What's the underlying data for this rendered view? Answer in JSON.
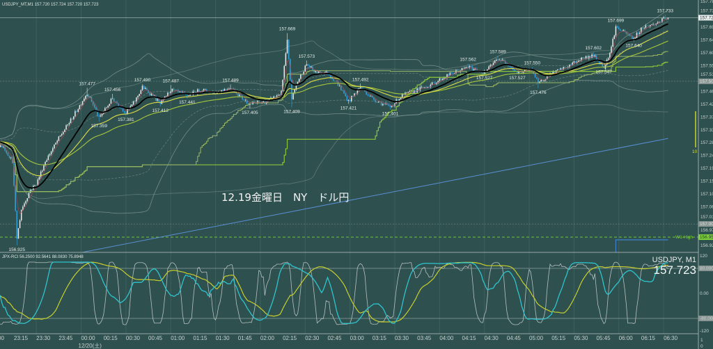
{
  "header": {
    "symbol_info": "USDJPY_MT,M1  157.720 157.724 157.720 157.723"
  },
  "annotation": "12.19金曜日　NY　ドル円",
  "oscillator": {
    "header": "JPX-RCI 56.2500 92.5641 88.0830 75.8948",
    "symbol_label": "USDJPY, M1",
    "price_label": "157.723",
    "axis": [
      {
        "text": "120",
        "value": 120,
        "boxed": false
      },
      {
        "text": "80.0000",
        "value": 80,
        "boxed": true
      },
      {
        "text": "0.00",
        "value": 0,
        "boxed": false
      },
      {
        "text": "-80.0000",
        "value": -80,
        "boxed": true
      },
      {
        "text": "-120",
        "value": -120,
        "boxed": false
      }
    ],
    "footer_ticks": [
      "1",
      "0"
    ]
  },
  "colors": {
    "background": "#2e514f",
    "bull": "#e8ecec",
    "bear": "#36a2dc",
    "ema_fast": "#000000",
    "ema_mid": "#dede48",
    "ema_slow": "#a9c93c",
    "step": "#8cc43c",
    "band": "#8fa3a0",
    "long_ma": "#5b8fd6",
    "rci_short": "#b9c1c0",
    "rci_mid": "#2fc4cf",
    "rci_long": "#c9cf2c",
    "w1_high": "#7fd23a"
  },
  "chart_data": {
    "type": "candlestick",
    "title": "USDJPY_MT,M1",
    "x_unit": "minutes since 23:00 (12/19)",
    "time_ticks": [
      "00",
      "23:15",
      "23:30",
      "23:45",
      "00:00",
      "00:15",
      "00:30",
      "00:45",
      "01:00",
      "01:15",
      "01:30",
      "01:45",
      "02:00",
      "02:15",
      "02:30",
      "02:45",
      "03:00",
      "03:15",
      "03:30",
      "03:45",
      "04:00",
      "04:15",
      "04:30",
      "04:45",
      "05:00",
      "05:15",
      "05:30",
      "05:45",
      "06:00",
      "06:15",
      "06:30"
    ],
    "date_label": "12/20(土)",
    "price_axis": [
      "157.780",
      "157.735",
      "157.690",
      "157.645",
      "157.600",
      "157.555",
      "157.510",
      "157.465",
      "157.420",
      "157.375",
      "157.330",
      "157.285",
      "157.240",
      "157.195",
      "157.150",
      "157.105",
      "157.060",
      "157.015",
      "156.970",
      "156.925"
    ],
    "ylim": [
      156.925,
      157.78
    ],
    "current_price": "157.723",
    "price_boxes": [
      {
        "text": "157.723",
        "value": 157.723,
        "style": "current"
      },
      {
        "text": "157.500",
        "value": 157.5,
        "style": "gray"
      },
      {
        "text": "157.000",
        "value": 157.0,
        "style": "gray"
      },
      {
        "text": "156.954",
        "value": 156.954,
        "style": "green"
      }
    ],
    "hlines": [
      {
        "value": 157.723,
        "style": "solid"
      },
      {
        "value": 157.5,
        "style": "faint"
      },
      {
        "value": 157.0,
        "style": "faint"
      },
      {
        "value": 156.954,
        "style": "green-dashed",
        "label": "W1 High"
      }
    ],
    "marker_label": "10",
    "price_path": [
      [
        0,
        157.29
      ],
      [
        8,
        157.27
      ],
      [
        14,
        157.22
      ],
      [
        17,
        156.95
      ],
      [
        20,
        157.05
      ],
      [
        26,
        157.12
      ],
      [
        30,
        157.14
      ],
      [
        36,
        157.22
      ],
      [
        45,
        157.3
      ],
      [
        55,
        157.38
      ],
      [
        64,
        157.46
      ],
      [
        68,
        157.42
      ],
      [
        72,
        157.37
      ],
      [
        81,
        157.44
      ],
      [
        90,
        157.39
      ],
      [
        96,
        157.43
      ],
      [
        101,
        157.48
      ],
      [
        108,
        157.45
      ],
      [
        113,
        157.42
      ],
      [
        120,
        157.47
      ],
      [
        131,
        157.45
      ],
      [
        140,
        157.47
      ],
      [
        150,
        157.46
      ],
      [
        160,
        157.48
      ],
      [
        168,
        157.44
      ],
      [
        173,
        157.42
      ],
      [
        185,
        157.43
      ],
      [
        194,
        157.46
      ],
      [
        198,
        157.64
      ],
      [
        201,
        157.44
      ],
      [
        205,
        157.5
      ],
      [
        211,
        157.56
      ],
      [
        217,
        157.53
      ],
      [
        225,
        157.53
      ],
      [
        232,
        157.49
      ],
      [
        239,
        157.43
      ],
      [
        247,
        157.48
      ],
      [
        255,
        157.44
      ],
      [
        262,
        157.42
      ],
      [
        267,
        157.41
      ],
      [
        275,
        157.45
      ],
      [
        285,
        157.47
      ],
      [
        295,
        157.49
      ],
      [
        305,
        157.52
      ],
      [
        319,
        157.55
      ],
      [
        330,
        157.53
      ],
      [
        339,
        157.58
      ],
      [
        346,
        157.56
      ],
      [
        352,
        157.53
      ],
      [
        362,
        157.54
      ],
      [
        366,
        157.49
      ],
      [
        372,
        157.52
      ],
      [
        385,
        157.55
      ],
      [
        395,
        157.58
      ],
      [
        403,
        157.59
      ],
      [
        410,
        157.55
      ],
      [
        414,
        157.6
      ],
      [
        418,
        157.69
      ],
      [
        424,
        157.67
      ],
      [
        430,
        157.65
      ],
      [
        436,
        157.69
      ],
      [
        444,
        157.7
      ],
      [
        451,
        157.72
      ],
      [
        453,
        157.723
      ]
    ],
    "price_labels": [
      {
        "m": 17,
        "text": "156.925",
        "type": "low"
      },
      {
        "m": 64,
        "text": "157.477",
        "type": "high"
      },
      {
        "m": 72,
        "text": "157.359",
        "type": "low"
      },
      {
        "m": 81,
        "text": "157.456",
        "type": "high"
      },
      {
        "m": 90,
        "text": "157.381",
        "type": "low"
      },
      {
        "m": 101,
        "text": "157.490",
        "type": "high"
      },
      {
        "m": 113,
        "text": "157.412",
        "type": "low"
      },
      {
        "m": 120,
        "text": "157.487",
        "type": "high"
      },
      {
        "m": 131,
        "text": "157.441",
        "type": "low"
      },
      {
        "m": 160,
        "text": "157.489",
        "type": "high"
      },
      {
        "m": 173,
        "text": "157.405",
        "type": "low"
      },
      {
        "m": 198,
        "text": "157.669",
        "type": "high"
      },
      {
        "m": 201,
        "text": "157.409",
        "type": "low"
      },
      {
        "m": 211,
        "text": "157.573",
        "type": "high"
      },
      {
        "m": 239,
        "text": "157.421",
        "type": "low"
      },
      {
        "m": 247,
        "text": "157.492",
        "type": "high"
      },
      {
        "m": 267,
        "text": "157.401",
        "type": "low"
      },
      {
        "m": 319,
        "text": "157.562",
        "type": "high"
      },
      {
        "m": 330,
        "text": "157.527",
        "type": "low"
      },
      {
        "m": 339,
        "text": "157.589",
        "type": "high"
      },
      {
        "m": 352,
        "text": "157.527",
        "type": "low"
      },
      {
        "m": 362,
        "text": "157.550",
        "type": "high"
      },
      {
        "m": 366,
        "text": "157.476",
        "type": "low"
      },
      {
        "m": 403,
        "text": "157.602",
        "type": "high"
      },
      {
        "m": 410,
        "text": "157.547",
        "type": "low"
      },
      {
        "m": 418,
        "text": "157.699",
        "type": "high"
      },
      {
        "m": 430,
        "text": "157.640",
        "type": "low"
      },
      {
        "m": 451,
        "text": "157.733",
        "type": "high"
      }
    ],
    "long_ma": [
      [
        60,
        156.9
      ],
      [
        453,
        157.3
      ]
    ],
    "oscillator_ylim": [
      -120,
      120
    ]
  }
}
